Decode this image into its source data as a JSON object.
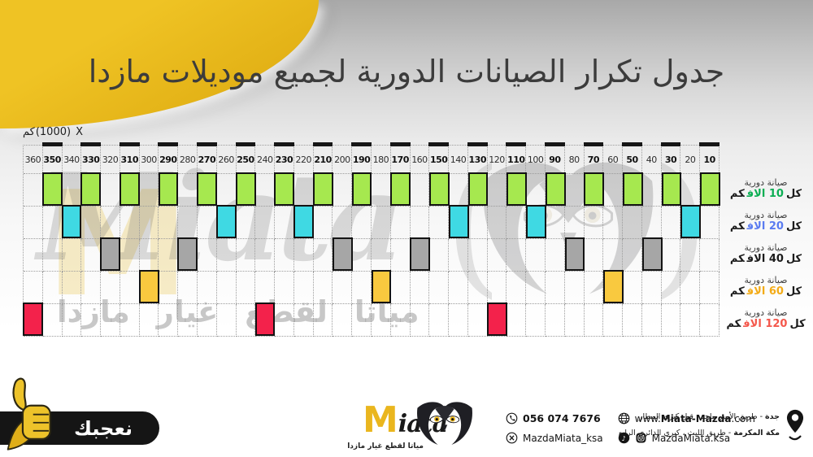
{
  "title": "جدول تكرار الصيانات الدورية لجميع موديلات مازدا",
  "axis": {
    "unit_km": "كم",
    "unit_factor": "(1000)",
    "unit_x": "X",
    "bold_columns": [
      350,
      330,
      310,
      290,
      270,
      250,
      230,
      210,
      190,
      170,
      150,
      130,
      110,
      90,
      70,
      50,
      30,
      10
    ]
  },
  "chart_data": {
    "type": "table",
    "title": "جدول تكرار الصيانات الدورية لجميع موديلات مازدا",
    "x_axis_label": "X (1000) كم",
    "columns": [
      360,
      350,
      340,
      330,
      320,
      310,
      300,
      290,
      280,
      270,
      260,
      250,
      240,
      230,
      220,
      210,
      200,
      190,
      180,
      170,
      160,
      150,
      140,
      130,
      120,
      110,
      100,
      90,
      80,
      70,
      60,
      50,
      40,
      30,
      20,
      10
    ],
    "rows": [
      {
        "name": "every-10k",
        "legend_prefix": "صيانة دورية",
        "legend_pre": "كل",
        "legend_value": "10",
        "legend_unit": "الاف",
        "legend_post": "كم",
        "block_color": "#a6e84f",
        "value_color": "#0bae53",
        "marks": [
          350,
          330,
          310,
          290,
          270,
          250,
          230,
          210,
          190,
          170,
          150,
          130,
          110,
          90,
          70,
          50,
          30,
          10
        ]
      },
      {
        "name": "every-20k",
        "legend_prefix": "صيانة دورية",
        "legend_pre": "كل",
        "legend_value": "20",
        "legend_unit": "الاف",
        "legend_post": "كم",
        "block_color": "#3fd9e3",
        "value_color": "#5a7bf0",
        "marks": [
          340,
          260,
          220,
          140,
          100,
          20
        ]
      },
      {
        "name": "every-40k",
        "legend_prefix": "صيانة دورية",
        "legend_pre": "كل",
        "legend_value": "40",
        "legend_unit": "الاف",
        "legend_post": "كم",
        "block_color": "#a6a6a6",
        "value_color": "#1a1a1a",
        "marks": [
          320,
          280,
          200,
          160,
          80,
          40
        ]
      },
      {
        "name": "every-60k",
        "legend_prefix": "صيانة دورية",
        "legend_pre": "كل",
        "legend_value": "60",
        "legend_unit": "الاف",
        "legend_post": "كم",
        "block_color": "#f9c93f",
        "value_color": "#f3ab17",
        "marks": [
          300,
          180,
          60
        ]
      },
      {
        "name": "every-120k",
        "legend_prefix": "صيانة دورية",
        "legend_pre": "كل",
        "legend_value": "120",
        "legend_unit": "الاف",
        "legend_post": "كم",
        "block_color": "#f3224b",
        "value_color": "#f4574b",
        "marks": [
          360,
          240,
          120
        ]
      }
    ]
  },
  "watermark": {
    "m": "M",
    "name": "Miata",
    "paren_open": "(",
    "paren_close": ")",
    "tagline": "مياتا لقطع غيار مازدا"
  },
  "footer": {
    "like_badge": "نعجبك",
    "brand": {
      "m": "M",
      "name_rest": "iata",
      "tagline": "مياتا لقطع غيار مازدا"
    },
    "contacts": {
      "phone": "056 074 7676",
      "website_prefix": "www.",
      "website_bold": "Miata-Mazda",
      "website_suffix": ".com",
      "x_handle": "MazdaMiata_ksa",
      "social_handle": "MazdaMiata.ksa"
    },
    "addresses": [
      {
        "city": "جدة",
        "details": "- طريق الأمير ماجد ، قبل كبري المطار"
      },
      {
        "city": "مكة المكرمة",
        "details": "- طريق الليث ، كبري الدائري الرابع"
      }
    ]
  },
  "colors": {
    "accent_yellow": "#e9b71d",
    "block_green": "#a6e84f",
    "block_cyan": "#3fd9e3",
    "block_gray": "#a6a6a6",
    "block_yellow": "#f9c93f",
    "block_red": "#f3224b"
  }
}
